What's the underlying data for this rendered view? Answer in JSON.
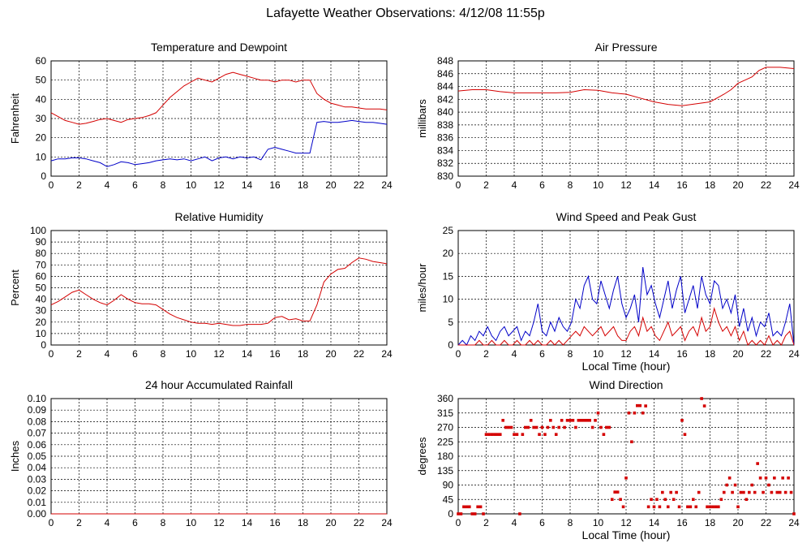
{
  "title": "Lafayette Weather Observations: 4/12/08 11:55p",
  "colors": {
    "red": "#d40000",
    "blue": "#0000c8",
    "grid": "#000000"
  },
  "chart_data": [
    {
      "id": "temp",
      "type": "line",
      "title": "Temperature and Dewpoint",
      "xlabel": "",
      "ylabel": "Fahrenheit",
      "xlim": [
        0,
        24
      ],
      "ylim": [
        0,
        60
      ],
      "xticks": [
        0,
        2,
        4,
        6,
        8,
        10,
        12,
        14,
        16,
        18,
        20,
        22,
        24
      ],
      "yticks": [
        0,
        10,
        20,
        30,
        40,
        50,
        60
      ],
      "grid": true,
      "series": [
        {
          "color": "red",
          "x": [
            0,
            0.5,
            1,
            1.5,
            2,
            2.5,
            3,
            3.5,
            4,
            4.5,
            5,
            5.5,
            6,
            6.5,
            7,
            7.5,
            8,
            8.5,
            9,
            9.5,
            10,
            10.5,
            11,
            11.5,
            12,
            12.5,
            13,
            13.5,
            14,
            14.5,
            15,
            15.5,
            16,
            16.5,
            17,
            17.5,
            18,
            18.5,
            19,
            19.5,
            20,
            20.5,
            21,
            21.5,
            22,
            22.5,
            23,
            23.5,
            24
          ],
          "y": [
            33,
            31,
            29,
            28,
            27,
            27.5,
            28.5,
            29.5,
            30,
            29,
            28,
            29.5,
            30,
            30.5,
            31.5,
            33,
            37,
            41,
            44,
            47,
            49,
            51,
            50,
            49,
            51,
            53,
            54,
            53,
            52,
            51,
            50,
            50,
            49,
            50,
            50,
            49,
            50,
            50,
            43,
            40,
            38,
            37,
            36,
            36,
            35.5,
            35,
            35,
            35,
            34.5
          ]
        },
        {
          "color": "blue",
          "x": [
            0,
            0.5,
            1,
            1.5,
            2,
            2.5,
            3,
            3.5,
            4,
            4.5,
            5,
            5.5,
            6,
            6.5,
            7,
            7.5,
            8,
            8.5,
            9,
            9.5,
            10,
            10.5,
            11,
            11.5,
            12,
            12.5,
            13,
            13.5,
            14,
            14.5,
            15,
            15.5,
            16,
            16.5,
            17,
            17.5,
            18,
            18.5,
            19,
            19.5,
            20,
            20.5,
            21,
            21.5,
            22,
            22.5,
            23,
            23.5,
            24
          ],
          "y": [
            8,
            9,
            9,
            9.5,
            9.5,
            9,
            8,
            7,
            5,
            6,
            7.5,
            7,
            6,
            6.5,
            7,
            8,
            8.5,
            9,
            8.5,
            9,
            8,
            9,
            10,
            8,
            9.5,
            10,
            9,
            10,
            9.5,
            10,
            8.5,
            14,
            15,
            14,
            13,
            12,
            12,
            12,
            28,
            28.5,
            28,
            28,
            28.5,
            29,
            28.5,
            28,
            28,
            27.5,
            27
          ]
        }
      ]
    },
    {
      "id": "pressure",
      "type": "line",
      "title": "Air Pressure",
      "xlabel": "",
      "ylabel": "millibars",
      "xlim": [
        0,
        24
      ],
      "ylim": [
        830,
        848
      ],
      "xticks": [
        0,
        2,
        4,
        6,
        8,
        10,
        12,
        14,
        16,
        18,
        20,
        22,
        24
      ],
      "yticks": [
        830,
        832,
        834,
        836,
        838,
        840,
        842,
        844,
        846,
        848
      ],
      "grid": true,
      "series": [
        {
          "color": "red",
          "x": [
            0,
            1,
            2,
            3,
            4,
            5,
            6,
            7,
            8,
            9,
            10,
            11,
            12,
            13,
            14,
            15,
            16,
            17,
            18,
            19,
            19.5,
            20,
            20.5,
            21,
            21.5,
            22,
            23,
            24
          ],
          "y": [
            843.3,
            843.5,
            843.5,
            843.2,
            843,
            843,
            843,
            843,
            843.1,
            843.5,
            843.4,
            843,
            842.8,
            842.2,
            841.6,
            841.2,
            841,
            841.3,
            841.6,
            842.8,
            843.5,
            844.5,
            845,
            845.5,
            846.5,
            847,
            847,
            846.8
          ]
        }
      ]
    },
    {
      "id": "humidity",
      "type": "line",
      "title": "Relative Humidity",
      "xlabel": "",
      "ylabel": "Percent",
      "xlim": [
        0,
        24
      ],
      "ylim": [
        0,
        100
      ],
      "xticks": [
        0,
        2,
        4,
        6,
        8,
        10,
        12,
        14,
        16,
        18,
        20,
        22,
        24
      ],
      "yticks": [
        0,
        10,
        20,
        30,
        40,
        50,
        60,
        70,
        80,
        90,
        100
      ],
      "grid": true,
      "series": [
        {
          "color": "red",
          "x": [
            0,
            0.5,
            1,
            1.5,
            2,
            2.5,
            3,
            3.5,
            4,
            4.5,
            5,
            5.5,
            6,
            6.5,
            7,
            7.5,
            8,
            8.5,
            9,
            9.5,
            10,
            10.5,
            11,
            11.5,
            12,
            12.5,
            13,
            13.5,
            14,
            14.5,
            15,
            15.5,
            16,
            16.5,
            17,
            17.5,
            18,
            18.5,
            19,
            19.5,
            20,
            20.5,
            21,
            21.5,
            22,
            22.5,
            23,
            23.5,
            24
          ],
          "y": [
            35,
            38,
            42,
            46,
            48,
            44,
            40,
            37,
            35,
            39,
            44,
            40,
            37,
            36,
            36,
            35,
            31,
            27,
            24,
            22,
            20,
            19,
            19,
            18,
            19,
            18,
            17,
            17,
            18,
            18,
            18,
            19,
            24,
            25,
            22,
            23,
            21,
            21,
            35,
            55,
            62,
            66,
            67,
            72,
            76,
            75,
            73,
            72,
            71
          ]
        }
      ]
    },
    {
      "id": "wind",
      "type": "line",
      "title": "Wind Speed and Peak Gust",
      "xlabel": "Local Time (hour)",
      "ylabel": "miles/hour",
      "xlim": [
        0,
        24
      ],
      "ylim": [
        0,
        25
      ],
      "xticks": [
        0,
        2,
        4,
        6,
        8,
        10,
        12,
        14,
        16,
        18,
        20,
        22,
        24
      ],
      "yticks": [
        0,
        5,
        10,
        15,
        20,
        25
      ],
      "grid": true,
      "series": [
        {
          "color": "blue",
          "x": [
            0,
            0.3,
            0.6,
            0.9,
            1.2,
            1.5,
            1.8,
            2.1,
            2.4,
            2.7,
            3,
            3.3,
            3.6,
            3.9,
            4.2,
            4.5,
            4.8,
            5.1,
            5.4,
            5.7,
            6,
            6.3,
            6.6,
            6.9,
            7.2,
            7.5,
            7.8,
            8.1,
            8.4,
            8.7,
            9,
            9.3,
            9.6,
            9.9,
            10.2,
            10.5,
            10.8,
            11.1,
            11.4,
            11.7,
            12,
            12.3,
            12.6,
            12.9,
            13.2,
            13.5,
            13.8,
            14.1,
            14.4,
            14.7,
            15,
            15.3,
            15.6,
            15.9,
            16.2,
            16.5,
            16.8,
            17.1,
            17.4,
            17.7,
            18,
            18.3,
            18.6,
            18.9,
            19.2,
            19.5,
            19.8,
            20.1,
            20.4,
            20.7,
            21,
            21.3,
            21.6,
            21.9,
            22.2,
            22.5,
            22.8,
            23.1,
            23.4,
            23.7,
            24
          ],
          "y": [
            0,
            1,
            0,
            2,
            1,
            3,
            2,
            4,
            2,
            1,
            3,
            4,
            2,
            3,
            4,
            1,
            3,
            2,
            5,
            9,
            3,
            2,
            5,
            3,
            6,
            4,
            3,
            5,
            10,
            8,
            13,
            15,
            10,
            9,
            14,
            11,
            8,
            12,
            15,
            9,
            6,
            8,
            11,
            5,
            17,
            11,
            13,
            9,
            6,
            10,
            14,
            8,
            12,
            15,
            7,
            10,
            13,
            8,
            15,
            11,
            9,
            14,
            13,
            8,
            10,
            7,
            11,
            4,
            8,
            3,
            6,
            2,
            5,
            4,
            7,
            2,
            3,
            2,
            5,
            9,
            0
          ]
        },
        {
          "color": "red",
          "x": [
            0,
            0.3,
            0.6,
            0.9,
            1.2,
            1.5,
            1.8,
            2.1,
            2.4,
            2.7,
            3,
            3.3,
            3.6,
            3.9,
            4.2,
            4.5,
            4.8,
            5.1,
            5.4,
            5.7,
            6,
            6.3,
            6.6,
            6.9,
            7.2,
            7.5,
            7.8,
            8.1,
            8.4,
            8.7,
            9,
            9.3,
            9.6,
            9.9,
            10.2,
            10.5,
            10.8,
            11.1,
            11.4,
            11.7,
            12,
            12.3,
            12.6,
            12.9,
            13.2,
            13.5,
            13.8,
            14.1,
            14.4,
            14.7,
            15,
            15.3,
            15.6,
            15.9,
            16.2,
            16.5,
            16.8,
            17.1,
            17.4,
            17.7,
            18,
            18.3,
            18.6,
            18.9,
            19.2,
            19.5,
            19.8,
            20.1,
            20.4,
            20.7,
            21,
            21.3,
            21.6,
            21.9,
            22.2,
            22.5,
            22.8,
            23.1,
            23.4,
            23.7,
            24
          ],
          "y": [
            0,
            0,
            0,
            0,
            0,
            1,
            0,
            0,
            1,
            0,
            0,
            1,
            0,
            0,
            1,
            0,
            0,
            1,
            0,
            1,
            0,
            0,
            1,
            0,
            1,
            0,
            1,
            2,
            3,
            2,
            4,
            3,
            2,
            3,
            4,
            2,
            3,
            4,
            2,
            1,
            1,
            3,
            4,
            2,
            6,
            3,
            4,
            2,
            1,
            3,
            5,
            2,
            3,
            4,
            1,
            3,
            4,
            2,
            6,
            3,
            4,
            8,
            5,
            3,
            4,
            2,
            4,
            1,
            3,
            0,
            1,
            0,
            1,
            0,
            2,
            0,
            1,
            0,
            2,
            3,
            0
          ]
        }
      ]
    },
    {
      "id": "rain",
      "type": "line",
      "title": "24 hour Accumulated Rainfall",
      "xlabel": "",
      "ylabel": "Inches",
      "xlim": [
        0,
        24
      ],
      "ylim": [
        0,
        0.1
      ],
      "xticks": [
        0,
        2,
        4,
        6,
        8,
        10,
        12,
        14,
        16,
        18,
        20,
        22,
        24
      ],
      "yticks": [
        "0.00",
        "0.01",
        "0.02",
        "0.03",
        "0.04",
        "0.05",
        "0.06",
        "0.07",
        "0.08",
        "0.09",
        "0.10"
      ],
      "grid": true,
      "series": [
        {
          "color": "red",
          "x": [
            0,
            24
          ],
          "y": [
            0,
            0
          ]
        }
      ]
    },
    {
      "id": "direction",
      "type": "scatter",
      "title": "Wind Direction",
      "xlabel": "Local Time (hour)",
      "ylabel": "degrees",
      "xlim": [
        0,
        24
      ],
      "ylim": [
        0,
        360
      ],
      "xticks": [
        0,
        2,
        4,
        6,
        8,
        10,
        12,
        14,
        16,
        18,
        20,
        22,
        24
      ],
      "yticks": [
        0,
        45,
        90,
        135,
        180,
        225,
        270,
        315,
        360
      ],
      "grid": true,
      "series": [
        {
          "color": "red",
          "x": [
            0,
            0.2,
            0.4,
            0.6,
            0.8,
            1.0,
            1.2,
            1.4,
            1.6,
            1.8,
            2.0,
            2.2,
            2.4,
            2.6,
            2.8,
            3.0,
            3.2,
            3.4,
            3.6,
            3.8,
            4.0,
            4.2,
            4.4,
            4.6,
            4.8,
            5.0,
            5.2,
            5.4,
            5.6,
            5.8,
            6.0,
            6.2,
            6.4,
            6.6,
            6.8,
            7.0,
            7.2,
            7.4,
            7.6,
            7.8,
            8.0,
            8.2,
            8.4,
            8.6,
            8.8,
            9.0,
            9.2,
            9.4,
            9.6,
            9.8,
            10.0,
            10.2,
            10.4,
            10.6,
            10.8,
            11.0,
            11.2,
            11.4,
            11.6,
            11.8,
            12.0,
            12.2,
            12.4,
            12.6,
            12.8,
            13.0,
            13.2,
            13.4,
            13.6,
            13.8,
            14.0,
            14.2,
            14.4,
            14.6,
            14.8,
            15.0,
            15.2,
            15.4,
            15.6,
            15.8,
            16.0,
            16.2,
            16.4,
            16.6,
            16.8,
            17.0,
            17.2,
            17.4,
            17.6,
            17.8,
            18.0,
            18.2,
            18.4,
            18.6,
            18.8,
            19.0,
            19.2,
            19.4,
            19.6,
            19.8,
            20.0,
            20.2,
            20.4,
            20.6,
            20.8,
            21.0,
            21.2,
            21.4,
            21.6,
            21.8,
            22.0,
            22.2,
            22.4,
            22.6,
            22.8,
            23.0,
            23.2,
            23.4,
            23.6,
            23.8,
            24.0
          ],
          "y": [
            0,
            0,
            22,
            22,
            22,
            0,
            0,
            22,
            22,
            0,
            248,
            248,
            248,
            248,
            248,
            248,
            292,
            270,
            270,
            270,
            248,
            248,
            0,
            248,
            270,
            270,
            292,
            270,
            270,
            248,
            270,
            248,
            270,
            292,
            270,
            248,
            270,
            292,
            270,
            292,
            292,
            292,
            270,
            292,
            292,
            292,
            292,
            292,
            270,
            292,
            315,
            270,
            248,
            270,
            270,
            45,
            68,
            68,
            45,
            22,
            112,
            315,
            225,
            315,
            338,
            338,
            315,
            337,
            22,
            45,
            22,
            45,
            22,
            67,
            45,
            22,
            67,
            45,
            67,
            22,
            292,
            248,
            22,
            22,
            45,
            22,
            67,
            360,
            337,
            22,
            22,
            22,
            22,
            22,
            45,
            67,
            90,
            112,
            67,
            90,
            22,
            67,
            67,
            45,
            67,
            90,
            67,
            157,
            112,
            67,
            112,
            90,
            67,
            112,
            67,
            67,
            112,
            67,
            112,
            67,
            0
          ]
        }
      ]
    }
  ]
}
